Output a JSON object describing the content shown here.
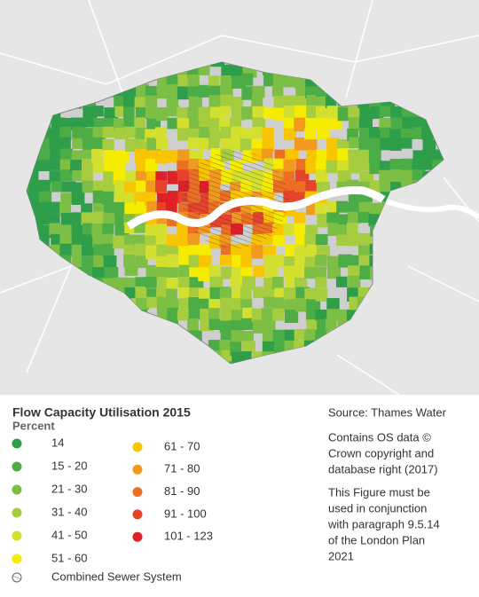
{
  "legend": {
    "title": "Flow Capacity Utilisation 2015",
    "subtitle": "Percent",
    "items": [
      {
        "label": "14",
        "color": "#2e9e4a"
      },
      {
        "label": "15 - 20",
        "color": "#4cad47"
      },
      {
        "label": "21 - 30",
        "color": "#7dbf44"
      },
      {
        "label": "31 - 40",
        "color": "#a6cc3f"
      },
      {
        "label": "41 - 50",
        "color": "#d4e02f"
      },
      {
        "label": "51 - 60",
        "color": "#f5ec00"
      },
      {
        "label": "61 - 70",
        "color": "#f9c400"
      },
      {
        "label": "71 - 80",
        "color": "#f29a1f"
      },
      {
        "label": "81 - 90",
        "color": "#ec6f24"
      },
      {
        "label": "91 - 100",
        "color": "#e6432a"
      },
      {
        "label": "101 - 123",
        "color": "#e02027"
      }
    ],
    "combined_sewer": "Combined Sewer System"
  },
  "source": "Source: Thames Water",
  "copyright": [
    "Contains OS data ©",
    "Crown copyright and",
    "database right (2017)"
  ],
  "note": [
    "This Figure must be",
    "used in conjunction",
    "with paragraph 9.5.14",
    "of the London Plan",
    "2021"
  ]
}
